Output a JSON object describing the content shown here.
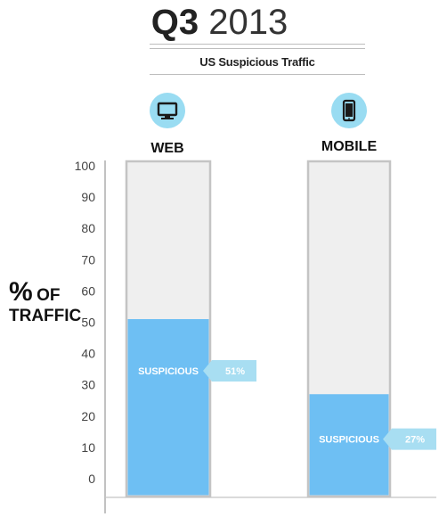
{
  "header": {
    "title_bold": "Q3",
    "title_light": "2013",
    "subtitle": "US Suspicious Traffic"
  },
  "ylabel": {
    "line1_big": "%",
    "line1_small": "OF",
    "line2": "TRAFFIC"
  },
  "icons": [
    "monitor-icon",
    "smartphone-icon"
  ],
  "colors": {
    "suspicious": "#6ebff3",
    "bar_bg": "#efefef",
    "bar_border": "#c4c4c4",
    "icon_bg": "#99dcf2",
    "callout": "#a8def2"
  },
  "chart_data": {
    "type": "bar",
    "title": "US Suspicious Traffic",
    "categories": [
      "WEB",
      "MOBILE"
    ],
    "series": [
      {
        "name": "SUSPICIOUS",
        "values": [
          51,
          27
        ]
      }
    ],
    "value_labels": [
      "51%",
      "27%"
    ],
    "ylabel": "% OF TRAFFIC",
    "ylim": [
      0,
      100
    ],
    "yticks": [
      0,
      10,
      20,
      30,
      40,
      50,
      60,
      70,
      80,
      90,
      100
    ]
  }
}
